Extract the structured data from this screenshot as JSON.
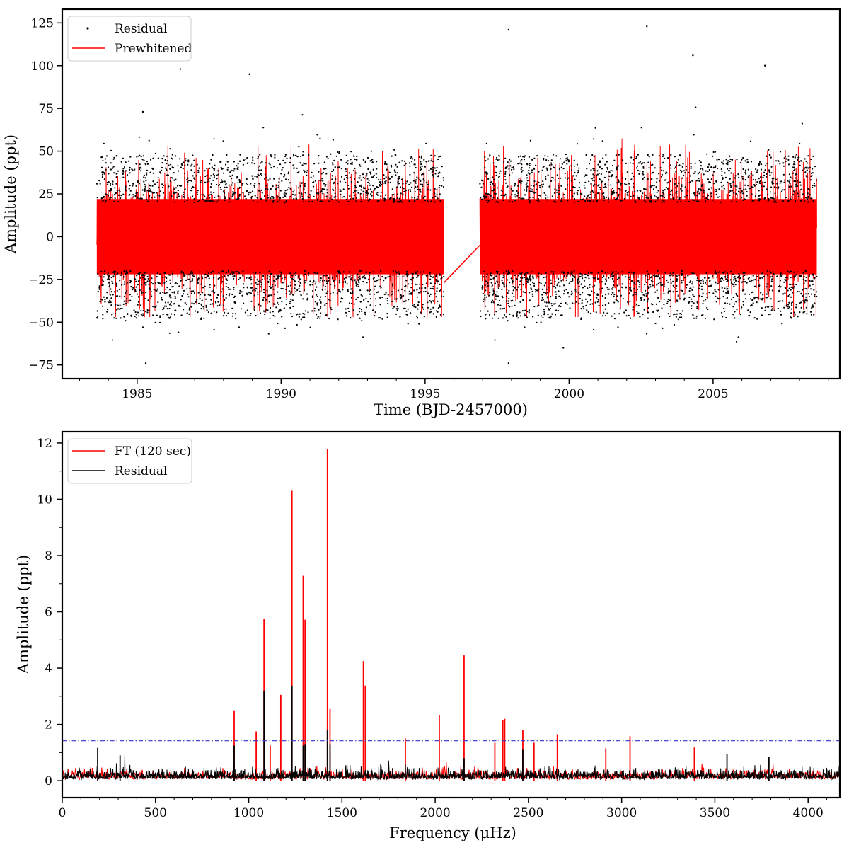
{
  "colors": {
    "prewhitened": "#ff0000",
    "residual": "#000000",
    "threshold": "#3333cc",
    "axes": "#000000",
    "background": "#ffffff"
  },
  "chart_data": [
    {
      "type": "scatter",
      "xlabel": "Time (BJD-2457000)",
      "ylabel": "Amplitude (ppt)",
      "xlim": [
        1982.4,
        2009.4
      ],
      "ylim": [
        -83,
        133
      ],
      "xticks": [
        1985,
        1990,
        1995,
        2000,
        2005
      ],
      "yticks": [
        -75,
        -50,
        -25,
        0,
        25,
        50,
        75,
        100,
        125
      ],
      "xtick_labels": [
        "1985",
        "1990",
        "1995",
        "2000",
        "2005"
      ],
      "ytick_labels": [
        "−75",
        "−50",
        "−25",
        "0",
        "25",
        "50",
        "75",
        "100",
        "125"
      ],
      "legend_position": "top-left",
      "segments": [
        [
          1983.6,
          1995.65
        ],
        [
          1996.9,
          2008.6
        ]
      ],
      "gap_connector": {
        "x": [
          1995.65,
          1996.9
        ],
        "y": [
          -27,
          -5
        ]
      },
      "series": [
        {
          "name": "Residual",
          "style": "points",
          "color": "#000000",
          "noise_sigma_ppt": 20,
          "max_abs_ppt": 123
        },
        {
          "name": "Prewhitened",
          "style": "line",
          "color": "#ff0000",
          "envelope_ppt": [
            -47,
            61
          ]
        }
      ],
      "notable_points": [
        {
          "x": 1985.2,
          "y": 73
        },
        {
          "x": 1986.5,
          "y": 98
        },
        {
          "x": 1988.9,
          "y": 95
        },
        {
          "x": 1997.9,
          "y": 121
        },
        {
          "x": 2002.7,
          "y": 123
        },
        {
          "x": 2004.3,
          "y": 106
        },
        {
          "x": 2006.8,
          "y": 100
        },
        {
          "x": 1985.3,
          "y": -74
        },
        {
          "x": 1997.9,
          "y": -74
        },
        {
          "x": 1999.8,
          "y": -65
        }
      ]
    },
    {
      "type": "line",
      "xlabel": "Frequency (μHz)",
      "ylabel": "Amplitude (ppt)",
      "xlim": [
        0,
        4170
      ],
      "ylim": [
        -0.6,
        12.4
      ],
      "xticks": [
        0,
        500,
        1000,
        1500,
        2000,
        2500,
        3000,
        3500,
        4000
      ],
      "yticks": [
        0,
        2,
        4,
        6,
        8,
        10,
        12
      ],
      "xtick_labels": [
        "0",
        "500",
        "1000",
        "1500",
        "2000",
        "2500",
        "3000",
        "3500",
        "4000"
      ],
      "ytick_labels": [
        "0",
        "2",
        "4",
        "6",
        "8",
        "10",
        "12"
      ],
      "legend_position": "top-left",
      "threshold": {
        "y": 1.42,
        "style": "dash-dot",
        "color": "#3333cc"
      },
      "series": [
        {
          "name": "FT (120 sec)",
          "color": "#ff0000",
          "peaks": [
            {
              "x": 922,
              "y": 2.5
            },
            {
              "x": 1040,
              "y": 1.75
            },
            {
              "x": 1082,
              "y": 5.75
            },
            {
              "x": 1115,
              "y": 1.25
            },
            {
              "x": 1172,
              "y": 3.05
            },
            {
              "x": 1232,
              "y": 10.3
            },
            {
              "x": 1292,
              "y": 7.28
            },
            {
              "x": 1302,
              "y": 5.72
            },
            {
              "x": 1422,
              "y": 11.78
            },
            {
              "x": 1436,
              "y": 2.55
            },
            {
              "x": 1615,
              "y": 4.25
            },
            {
              "x": 1625,
              "y": 3.38
            },
            {
              "x": 1840,
              "y": 1.5
            },
            {
              "x": 2022,
              "y": 2.32
            },
            {
              "x": 2155,
              "y": 4.45
            },
            {
              "x": 2320,
              "y": 1.35
            },
            {
              "x": 2363,
              "y": 2.15
            },
            {
              "x": 2373,
              "y": 2.2
            },
            {
              "x": 2470,
              "y": 1.8
            },
            {
              "x": 2530,
              "y": 1.35
            },
            {
              "x": 2655,
              "y": 1.65
            },
            {
              "x": 2915,
              "y": 1.15
            },
            {
              "x": 3045,
              "y": 1.58
            },
            {
              "x": 3390,
              "y": 1.18
            }
          ]
        },
        {
          "name": "Residual",
          "color": "#000000",
          "noise_level_ppt": 0.3,
          "peaks": [
            {
              "x": 190,
              "y": 1.17
            },
            {
              "x": 310,
              "y": 0.9
            },
            {
              "x": 922,
              "y": 1.25
            },
            {
              "x": 1082,
              "y": 3.2
            },
            {
              "x": 1232,
              "y": 3.35
            },
            {
              "x": 1292,
              "y": 1.25
            },
            {
              "x": 1302,
              "y": 1.3
            },
            {
              "x": 1422,
              "y": 1.8
            },
            {
              "x": 1436,
              "y": 1.3
            },
            {
              "x": 2155,
              "y": 0.8
            },
            {
              "x": 2470,
              "y": 1.1
            },
            {
              "x": 3565,
              "y": 0.95
            },
            {
              "x": 3790,
              "y": 0.85
            }
          ]
        }
      ]
    }
  ]
}
